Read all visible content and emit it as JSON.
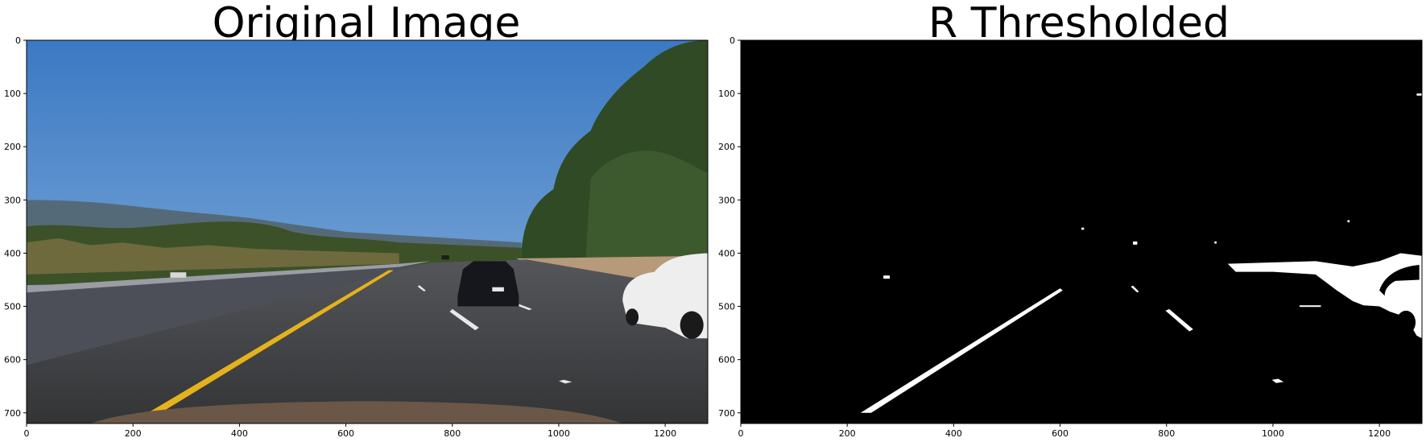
{
  "chart_data": [
    {
      "type": "image",
      "title": "Original Image",
      "xlim": [
        0,
        1280
      ],
      "ylim": [
        720,
        0
      ],
      "xticks": [
        0,
        200,
        400,
        600,
        800,
        1000,
        1200
      ],
      "yticks": [
        0,
        100,
        200,
        300,
        400,
        500,
        600,
        700
      ],
      "xtick_labels": [
        "0",
        "200",
        "400",
        "600",
        "800",
        "1000",
        "1200"
      ],
      "ytick_labels": [
        "0",
        "100",
        "200",
        "300",
        "400",
        "500",
        "600",
        "700"
      ],
      "content": "color road photo",
      "colors": {
        "sky": "#4a87c9",
        "road": "#3e3f41",
        "lane_yellow": "#e6b21c",
        "trees": "#2f4a25"
      }
    },
    {
      "type": "image",
      "title": "R Thresholded",
      "xlim": [
        0,
        1280
      ],
      "ylim": [
        720,
        0
      ],
      "xticks": [
        0,
        200,
        400,
        600,
        800,
        1000,
        1200
      ],
      "yticks": [
        0,
        100,
        200,
        300,
        400,
        500,
        600,
        700
      ],
      "xtick_labels": [
        "0",
        "200",
        "400",
        "600",
        "800",
        "1000",
        "1200"
      ],
      "ytick_labels": [
        "0",
        "100",
        "200",
        "300",
        "400",
        "500",
        "600",
        "700"
      ],
      "content": "binary mask",
      "colors": {
        "background": "#000000",
        "foreground": "#ffffff"
      }
    }
  ]
}
